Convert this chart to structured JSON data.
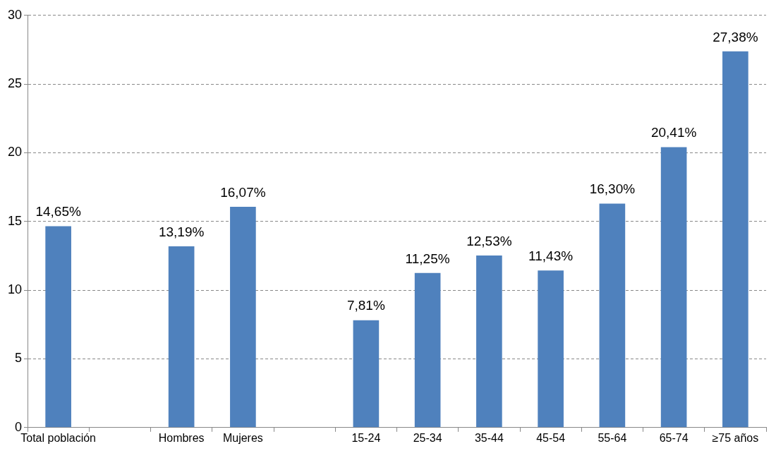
{
  "chart_data": {
    "type": "bar",
    "categories": [
      "Total población",
      null,
      "Hombres",
      "Mujeres",
      null,
      "15-24",
      "25-34",
      "35-44",
      "45-54",
      "55-64",
      "65-74",
      "≥75 años"
    ],
    "values": [
      14.65,
      null,
      13.19,
      16.07,
      null,
      7.81,
      11.25,
      12.53,
      11.43,
      16.3,
      20.41,
      27.38
    ],
    "value_labels": [
      "14,65%",
      null,
      "13,19%",
      "16,07%",
      null,
      "7,81%",
      "11,25%",
      "12,53%",
      "11,43%",
      "16,30%",
      "20,41%",
      "27,38%"
    ],
    "color": "#4f81bd",
    "ylim": [
      0,
      30
    ],
    "yticks": [
      0,
      5,
      10,
      15,
      20,
      25,
      30
    ],
    "grid": "y",
    "legend": false
  }
}
